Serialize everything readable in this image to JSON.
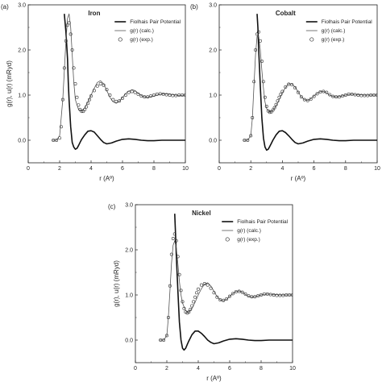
{
  "chart_data": [
    {
      "type": "line",
      "panel_label": "(a)",
      "title": "Iron",
      "xlabel": "r (Aº)",
      "ylabel": "g(r), u(r) (mRyd)",
      "xlim": [
        0,
        10
      ],
      "ylim": [
        -0.5,
        3.0
      ],
      "x_ticks": [
        "0",
        "2",
        "4",
        "6",
        "8",
        "10"
      ],
      "y_ticks": [
        "0.0",
        "1.0",
        "2.0",
        "3.0"
      ],
      "legend_position": "top-right",
      "series": [
        {
          "name": "Fiolhais Pair Potential",
          "style": "thick-line",
          "color": "#111111",
          "x": [
            2.3,
            2.4,
            2.5,
            2.55,
            2.6,
            2.7,
            2.8,
            2.9,
            3.0,
            3.1,
            3.2,
            3.3,
            3.4,
            3.6,
            3.8,
            4.0,
            4.2,
            4.4,
            4.6,
            4.8,
            5.0,
            5.3,
            5.6,
            6.0,
            6.4,
            6.8,
            7.2,
            7.6,
            8.0,
            8.5,
            9.0,
            10.0
          ],
          "y": [
            2.8,
            2.4,
            1.8,
            1.3,
            0.9,
            0.3,
            -0.05,
            -0.15,
            -0.2,
            -0.18,
            -0.12,
            -0.05,
            0.02,
            0.12,
            0.2,
            0.21,
            0.18,
            0.1,
            0.02,
            -0.05,
            -0.08,
            -0.06,
            -0.02,
            0.02,
            0.03,
            0.02,
            0.0,
            -0.01,
            -0.01,
            0.0,
            0.0,
            0.0
          ]
        },
        {
          "name": "g(r) (calc.)",
          "style": "thin-line",
          "color": "#555555",
          "x": [
            1.5,
            1.8,
            2.0,
            2.2,
            2.4,
            2.5,
            2.6,
            2.7,
            2.8,
            2.9,
            3.0,
            3.2,
            3.4,
            3.6,
            3.8,
            4.0,
            4.2,
            4.4,
            4.6,
            4.8,
            5.0,
            5.2,
            5.4,
            5.6,
            5.8,
            6.0,
            6.3,
            6.6,
            6.8,
            7.0,
            7.3,
            7.6,
            8.0,
            8.4,
            8.8,
            9.2,
            9.6,
            10.0
          ],
          "y": [
            0.0,
            0.0,
            0.1,
            0.9,
            2.2,
            2.7,
            2.8,
            2.5,
            1.9,
            1.3,
            0.9,
            0.68,
            0.65,
            0.72,
            0.85,
            1.0,
            1.15,
            1.28,
            1.32,
            1.25,
            1.1,
            0.95,
            0.85,
            0.82,
            0.86,
            0.95,
            1.07,
            1.12,
            1.1,
            1.04,
            0.97,
            0.95,
            0.98,
            1.02,
            1.03,
            1.01,
            0.99,
            1.0
          ]
        },
        {
          "name": "g(r) (exp.)",
          "style": "open-circles",
          "color": "#333333",
          "x": [
            1.6,
            1.8,
            2.0,
            2.1,
            2.2,
            2.3,
            2.4,
            2.5,
            2.6,
            2.7,
            2.8,
            2.9,
            3.0,
            3.1,
            3.2,
            3.3,
            3.4,
            3.5,
            3.6,
            3.7,
            3.8,
            3.9,
            4.0,
            4.2,
            4.4,
            4.6,
            4.8,
            5.0,
            5.2,
            5.4,
            5.6,
            5.8,
            6.0,
            6.2,
            6.4,
            6.6,
            6.8,
            7.0,
            7.2,
            7.4,
            7.6,
            7.8,
            8.0,
            8.2,
            8.4,
            8.6,
            8.8,
            9.0,
            9.2,
            9.4,
            9.6,
            9.8,
            10.0
          ],
          "y": [
            0.0,
            0.0,
            0.05,
            0.3,
            0.9,
            1.6,
            2.2,
            2.55,
            2.6,
            2.35,
            2.0,
            1.6,
            1.25,
            0.95,
            0.78,
            0.68,
            0.64,
            0.64,
            0.68,
            0.74,
            0.82,
            0.9,
            0.98,
            1.1,
            1.2,
            1.25,
            1.22,
            1.12,
            1.0,
            0.9,
            0.86,
            0.87,
            0.93,
            1.0,
            1.06,
            1.08,
            1.06,
            1.02,
            0.98,
            0.96,
            0.96,
            0.98,
            1.0,
            1.02,
            1.03,
            1.02,
            1.01,
            1.0,
            0.99,
            0.99,
            1.0,
            1.0,
            1.0
          ]
        }
      ]
    },
    {
      "type": "line",
      "panel_label": "(b)",
      "title": "Cobalt",
      "xlabel": "r (Aº)",
      "ylabel": "",
      "xlim": [
        0,
        10
      ],
      "ylim": [
        -0.5,
        3.0
      ],
      "x_ticks": [
        "0",
        "2",
        "4",
        "6",
        "8",
        "10"
      ],
      "y_ticks": [
        "0.0",
        "1.0",
        "2.0",
        "3.0"
      ],
      "legend_position": "top-right",
      "series": [
        {
          "name": "Fiolhais Pair Potential",
          "style": "thick-line",
          "color": "#111111",
          "x": [
            2.4,
            2.45,
            2.5,
            2.6,
            2.7,
            2.8,
            2.9,
            3.0,
            3.1,
            3.2,
            3.3,
            3.4,
            3.6,
            3.8,
            4.0,
            4.2,
            4.4,
            4.6,
            4.8,
            5.0,
            5.3,
            5.6,
            6.0,
            6.4,
            6.8,
            7.2,
            7.6,
            8.0,
            8.5,
            9.0,
            10.0
          ],
          "y": [
            2.8,
            2.5,
            2.0,
            1.2,
            0.5,
            0.05,
            -0.15,
            -0.22,
            -0.2,
            -0.14,
            -0.07,
            0.0,
            0.12,
            0.2,
            0.21,
            0.17,
            0.1,
            0.02,
            -0.05,
            -0.08,
            -0.06,
            -0.02,
            0.02,
            0.03,
            0.02,
            0.0,
            -0.01,
            -0.01,
            0.0,
            0.0,
            0.0
          ]
        },
        {
          "name": "g(r) (calc.)",
          "style": "thin-line",
          "color": "#555555",
          "x": [
            1.5,
            1.8,
            2.0,
            2.1,
            2.2,
            2.3,
            2.4,
            2.5,
            2.6,
            2.7,
            2.8,
            2.9,
            3.0,
            3.2,
            3.4,
            3.6,
            3.8,
            4.0,
            4.2,
            4.4,
            4.6,
            4.8,
            5.0,
            5.2,
            5.4,
            5.6,
            5.8,
            6.0,
            6.2,
            6.4,
            6.6,
            6.8,
            7.0,
            7.2,
            7.4,
            7.6,
            8.0,
            8.4,
            8.8,
            9.2,
            9.6,
            10.0
          ],
          "y": [
            0.0,
            0.0,
            0.1,
            0.5,
            1.2,
            1.9,
            2.3,
            2.3,
            2.0,
            1.55,
            1.15,
            0.85,
            0.7,
            0.62,
            0.66,
            0.76,
            0.9,
            1.05,
            1.17,
            1.25,
            1.25,
            1.18,
            1.07,
            0.96,
            0.9,
            0.88,
            0.92,
            0.98,
            1.04,
            1.08,
            1.08,
            1.05,
            1.0,
            0.97,
            0.96,
            0.97,
            1.0,
            1.02,
            1.01,
            1.0,
            1.0,
            1.0
          ]
        },
        {
          "name": "g(r) (exp.)",
          "style": "open-circles",
          "color": "#333333",
          "x": [
            1.6,
            1.8,
            2.0,
            2.1,
            2.2,
            2.3,
            2.4,
            2.5,
            2.6,
            2.7,
            2.8,
            2.9,
            3.0,
            3.1,
            3.2,
            3.3,
            3.4,
            3.5,
            3.6,
            3.7,
            3.8,
            3.9,
            4.0,
            4.2,
            4.4,
            4.6,
            4.8,
            5.0,
            5.2,
            5.4,
            5.6,
            5.8,
            6.0,
            6.2,
            6.4,
            6.6,
            6.8,
            7.0,
            7.2,
            7.4,
            7.6,
            7.8,
            8.0,
            8.2,
            8.4,
            8.6,
            8.8,
            9.0,
            9.2,
            9.4,
            9.6,
            9.8,
            10.0
          ],
          "y": [
            0.0,
            0.0,
            0.1,
            0.5,
            1.3,
            2.0,
            2.35,
            2.4,
            2.2,
            1.75,
            1.3,
            0.95,
            0.75,
            0.65,
            0.62,
            0.63,
            0.67,
            0.72,
            0.79,
            0.87,
            0.95,
            1.02,
            1.08,
            1.18,
            1.24,
            1.23,
            1.16,
            1.06,
            0.96,
            0.9,
            0.88,
            0.91,
            0.97,
            1.03,
            1.07,
            1.08,
            1.06,
            1.01,
            0.97,
            0.96,
            0.96,
            0.98,
            1.0,
            1.02,
            1.02,
            1.01,
            1.0,
            0.99,
            0.99,
            0.99,
            1.0,
            1.0,
            1.0
          ]
        }
      ]
    },
    {
      "type": "line",
      "panel_label": "(c)",
      "title": "Nickel",
      "xlabel": "r (Aº)",
      "ylabel": "g(r), u(r) (mRyd)",
      "xlim": [
        0,
        10
      ],
      "ylim": [
        -0.5,
        3.0
      ],
      "x_ticks": [
        "0",
        "2",
        "4",
        "6",
        "8",
        "10"
      ],
      "y_ticks": [
        "0.0",
        "1.0",
        "2.0",
        "3.0"
      ],
      "legend_position": "top-right",
      "series": [
        {
          "name": "Fiolhais Pair Potential",
          "style": "thick-line",
          "color": "#111111",
          "x": [
            2.5,
            2.55,
            2.6,
            2.7,
            2.8,
            2.9,
            3.0,
            3.1,
            3.2,
            3.3,
            3.4,
            3.6,
            3.8,
            4.0,
            4.2,
            4.4,
            4.6,
            4.8,
            5.0,
            5.3,
            5.6,
            6.0,
            6.4,
            6.8,
            7.2,
            7.6,
            8.0,
            8.5,
            9.0,
            10.0
          ],
          "y": [
            2.8,
            2.4,
            1.9,
            1.1,
            0.4,
            0.0,
            -0.18,
            -0.22,
            -0.18,
            -0.1,
            -0.02,
            0.12,
            0.2,
            0.2,
            0.15,
            0.08,
            0.0,
            -0.05,
            -0.08,
            -0.06,
            -0.02,
            0.02,
            0.03,
            0.02,
            0.0,
            -0.01,
            -0.01,
            0.0,
            0.0,
            0.0
          ]
        },
        {
          "name": "g(r) (calc.)",
          "style": "thin-line",
          "color": "#555555",
          "x": [
            1.5,
            1.8,
            2.0,
            2.1,
            2.2,
            2.3,
            2.4,
            2.5,
            2.6,
            2.7,
            2.8,
            2.9,
            3.0,
            3.2,
            3.4,
            3.6,
            3.8,
            4.0,
            4.2,
            4.4,
            4.6,
            4.8,
            5.0,
            5.2,
            5.4,
            5.6,
            5.8,
            6.0,
            6.2,
            6.4,
            6.6,
            6.8,
            7.0,
            7.2,
            7.4,
            7.6,
            8.0,
            8.4,
            8.8,
            9.2,
            9.6,
            10.0
          ],
          "y": [
            0.0,
            0.0,
            0.1,
            0.5,
            1.1,
            1.7,
            2.1,
            2.2,
            2.05,
            1.7,
            1.3,
            1.0,
            0.82,
            0.65,
            0.62,
            0.7,
            0.84,
            1.0,
            1.14,
            1.24,
            1.27,
            1.2,
            1.08,
            0.96,
            0.89,
            0.87,
            0.9,
            0.97,
            1.03,
            1.08,
            1.09,
            1.06,
            1.01,
            0.97,
            0.95,
            0.96,
            1.0,
            1.02,
            1.01,
            1.0,
            1.0,
            1.0
          ]
        },
        {
          "name": "g(r) (exp.)",
          "style": "open-circles",
          "color": "#333333",
          "x": [
            1.6,
            1.8,
            2.0,
            2.1,
            2.2,
            2.3,
            2.4,
            2.5,
            2.6,
            2.7,
            2.8,
            2.9,
            3.0,
            3.1,
            3.2,
            3.3,
            3.4,
            3.5,
            3.6,
            3.7,
            3.8,
            3.9,
            4.0,
            4.2,
            4.4,
            4.6,
            4.8,
            5.0,
            5.2,
            5.4,
            5.6,
            5.8,
            6.0,
            6.2,
            6.4,
            6.6,
            6.8,
            7.0,
            7.2,
            7.4,
            7.6,
            7.8,
            8.0,
            8.2,
            8.4,
            8.6,
            8.8,
            9.0,
            9.2,
            9.4,
            9.6,
            9.8,
            10.0
          ],
          "y": [
            0.0,
            0.0,
            0.1,
            0.5,
            1.2,
            1.9,
            2.25,
            2.35,
            2.2,
            1.85,
            1.45,
            1.1,
            0.85,
            0.7,
            0.62,
            0.6,
            0.62,
            0.68,
            0.76,
            0.85,
            0.95,
            1.05,
            1.13,
            1.22,
            1.25,
            1.22,
            1.15,
            1.05,
            0.95,
            0.89,
            0.88,
            0.91,
            0.97,
            1.03,
            1.07,
            1.08,
            1.06,
            1.02,
            0.98,
            0.96,
            0.96,
            0.98,
            1.0,
            1.02,
            1.02,
            1.01,
            1.0,
            0.99,
            0.99,
            0.99,
            1.0,
            1.0,
            1.0
          ]
        }
      ]
    }
  ]
}
